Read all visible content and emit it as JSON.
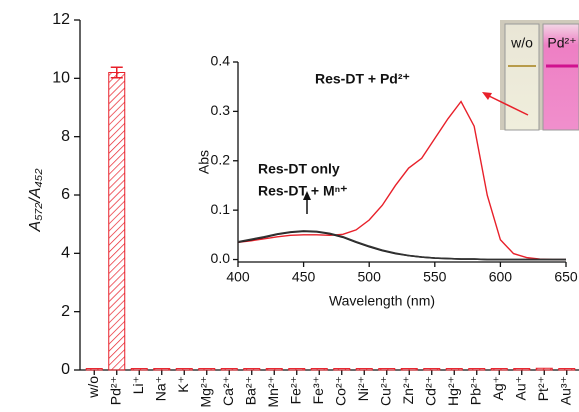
{
  "chart_data": [
    {
      "type": "bar",
      "y_label": "A₅₇₂/A₄₅₂",
      "categories": [
        "w/o",
        "Pd²⁺",
        "Li⁺",
        "Na⁺",
        "K⁺",
        "Mg²⁺",
        "Ca²⁺",
        "Ba²⁺",
        "Mn²⁺",
        "Fe²⁺",
        "Fe³⁺",
        "Co²⁺",
        "Ni²⁺",
        "Cu²⁺",
        "Zn²⁺",
        "Cd²⁺",
        "Hg²⁺",
        "Pb²⁺",
        "Ag⁺",
        "Au⁺",
        "Pt²⁺",
        "Au³⁺"
      ],
      "values": [
        0.05,
        10.2,
        0.05,
        0.05,
        0.05,
        0.05,
        0.05,
        0.05,
        0.05,
        0.05,
        0.05,
        0.05,
        0.05,
        0.05,
        0.05,
        0.05,
        0.05,
        0.05,
        0.05,
        0.05,
        0.06,
        0.05
      ],
      "errors": [
        null,
        0.18,
        null,
        null,
        null,
        null,
        null,
        null,
        null,
        null,
        null,
        null,
        null,
        null,
        null,
        null,
        null,
        null,
        null,
        null,
        null,
        null
      ],
      "color": "#e8202a",
      "ylim": [
        0,
        12
      ],
      "yticks": [
        0,
        2,
        4,
        6,
        8,
        10,
        12
      ]
    },
    {
      "type": "line",
      "x_label": "Wavelength (nm)",
      "y_label": "Abs",
      "x": [
        400,
        410,
        420,
        430,
        440,
        450,
        460,
        470,
        480,
        490,
        500,
        510,
        520,
        530,
        540,
        550,
        560,
        570,
        580,
        590,
        600,
        610,
        620,
        630,
        640,
        650
      ],
      "series": [
        {
          "name": "Res-DT + Pd²⁺",
          "color": "#e8202a",
          "values": [
            0.035,
            0.038,
            0.042,
            0.046,
            0.049,
            0.05,
            0.05,
            0.049,
            0.051,
            0.06,
            0.08,
            0.11,
            0.15,
            0.185,
            0.205,
            0.245,
            0.285,
            0.32,
            0.27,
            0.13,
            0.04,
            0.012,
            0.004,
            0.001,
            0,
            0
          ]
        },
        {
          "name": "Res-DT only",
          "color": "#111111",
          "values": [
            0.035,
            0.04,
            0.045,
            0.051,
            0.055,
            0.057,
            0.056,
            0.052,
            0.045,
            0.035,
            0.026,
            0.018,
            0.012,
            0.008,
            0.005,
            0.003,
            0.002,
            0.001,
            0.001,
            0,
            0,
            0,
            0,
            0,
            0,
            0
          ]
        },
        {
          "name": "Res-DT + Mⁿ⁺",
          "color": "#333333",
          "values": [
            0.036,
            0.041,
            0.046,
            0.052,
            0.056,
            0.058,
            0.057,
            0.053,
            0.046,
            0.036,
            0.027,
            0.019,
            0.013,
            0.008,
            0.005,
            0.003,
            0.002,
            0.001,
            0.001,
            0,
            0,
            0,
            0,
            0,
            0,
            0
          ]
        }
      ],
      "xlim": [
        400,
        650
      ],
      "xticks": [
        400,
        450,
        500,
        550,
        600,
        650
      ],
      "ylim": [
        -0.005,
        0.4
      ],
      "yticks": [
        {
          "value": 0,
          "label": "0.0"
        },
        0.1,
        0.2,
        0.3,
        0.4
      ]
    }
  ],
  "inset_photo": {
    "labels": [
      "w/o",
      "Pd²⁺"
    ]
  }
}
